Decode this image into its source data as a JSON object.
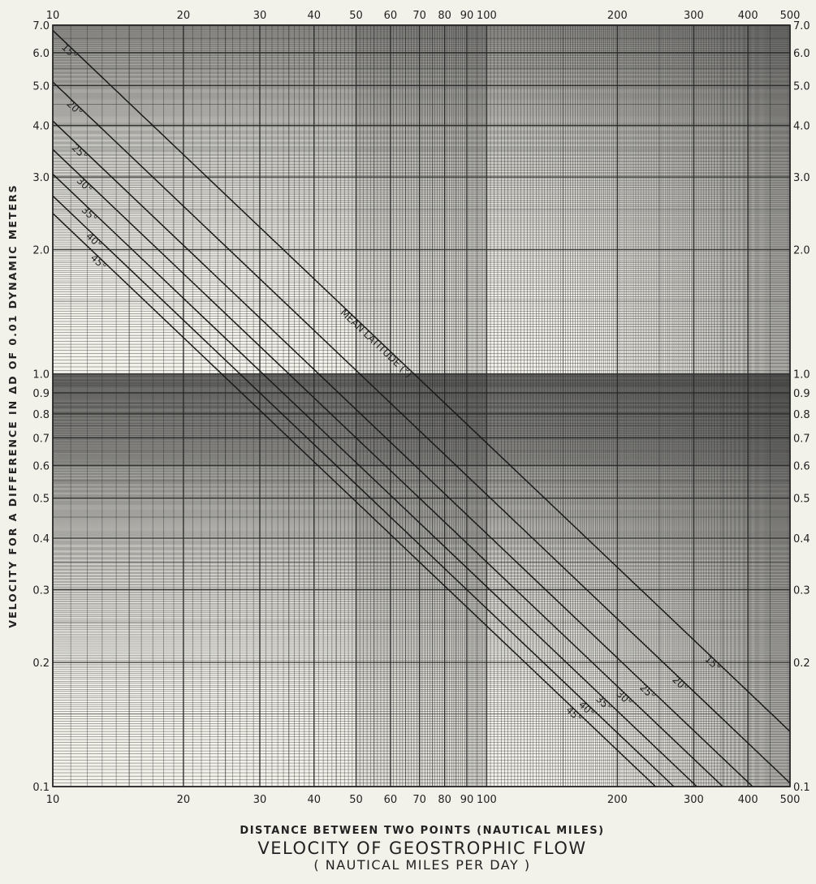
{
  "chart_data": {
    "type": "line",
    "title": "VELOCITY OF GEOSTROPHIC FLOW",
    "subtitle": "( NAUTICAL MILES PER DAY )",
    "xlabel": "DISTANCE BETWEEN TWO POINTS (NAUTICAL MILES)",
    "ylabel": "VELOCITY FOR A DIFFERENCE IN ΔD OF 0.01 DYNAMIC METERS",
    "x_scale": "log",
    "y_scale": "log",
    "xlim": [
      10,
      500
    ],
    "ylim": [
      0.1,
      7.0
    ],
    "grid": true,
    "x_ticks": [
      "10",
      "20",
      "30",
      "40",
      "50",
      "60",
      "70",
      "80",
      "90",
      "100",
      "200",
      "300",
      "400",
      "500"
    ],
    "x_tick_values": [
      10,
      20,
      30,
      40,
      50,
      60,
      70,
      80,
      90,
      100,
      200,
      300,
      400,
      500
    ],
    "y_ticks": [
      "0.1",
      "0.2",
      "0.3",
      "0.4",
      "0.5",
      "0.6",
      "0.7",
      "0.8",
      "0.9",
      "1.0",
      "2.0",
      "3.0",
      "4.0",
      "5.0",
      "6.0",
      "7.0"
    ],
    "y_tick_values": [
      0.1,
      0.2,
      0.3,
      0.4,
      0.5,
      0.6,
      0.7,
      0.8,
      0.9,
      1.0,
      2.0,
      3.0,
      4.0,
      5.0,
      6.0,
      7.0
    ],
    "annotation": "MEAN LATITUDE (°)",
    "series": [
      {
        "name": "15°",
        "x": [
          10,
          500
        ],
        "y": [
          6.8,
          0.136
        ]
      },
      {
        "name": "20°",
        "x": [
          10,
          500
        ],
        "y": [
          5.1,
          0.102
        ]
      },
      {
        "name": "25°",
        "x": [
          10,
          410
        ],
        "y": [
          4.1,
          0.1
        ]
      },
      {
        "name": "30°",
        "x": [
          10,
          350
        ],
        "y": [
          3.5,
          0.1
        ]
      },
      {
        "name": "35°",
        "x": [
          10,
          305
        ],
        "y": [
          3.05,
          0.1
        ]
      },
      {
        "name": "40°",
        "x": [
          10,
          270
        ],
        "y": [
          2.7,
          0.1
        ]
      },
      {
        "name": "45°",
        "x": [
          10,
          245
        ],
        "y": [
          2.45,
          0.1
        ]
      }
    ]
  }
}
